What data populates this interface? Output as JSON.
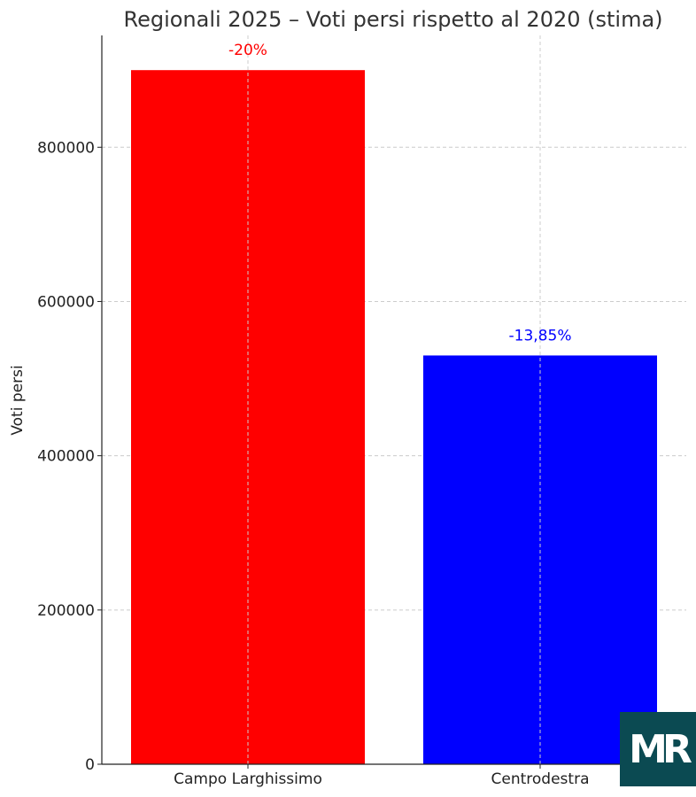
{
  "chart_data": {
    "type": "bar",
    "title": "Regionali 2025 – Voti persi rispetto al 2020 (stima)",
    "xlabel": "",
    "ylabel": "Voti persi",
    "categories": [
      "Campo Larghissimo",
      "Centrodestra"
    ],
    "values": [
      900000,
      530000
    ],
    "colors": [
      "#ff0000",
      "#0000ff"
    ],
    "data_labels": [
      "-20%",
      "-13,85%"
    ],
    "ylim": [
      0,
      945000
    ],
    "yticks": [
      0,
      200000,
      400000,
      600000,
      800000
    ],
    "grid": true
  },
  "logo": {
    "text": "MR",
    "color": "#0b4a52"
  }
}
